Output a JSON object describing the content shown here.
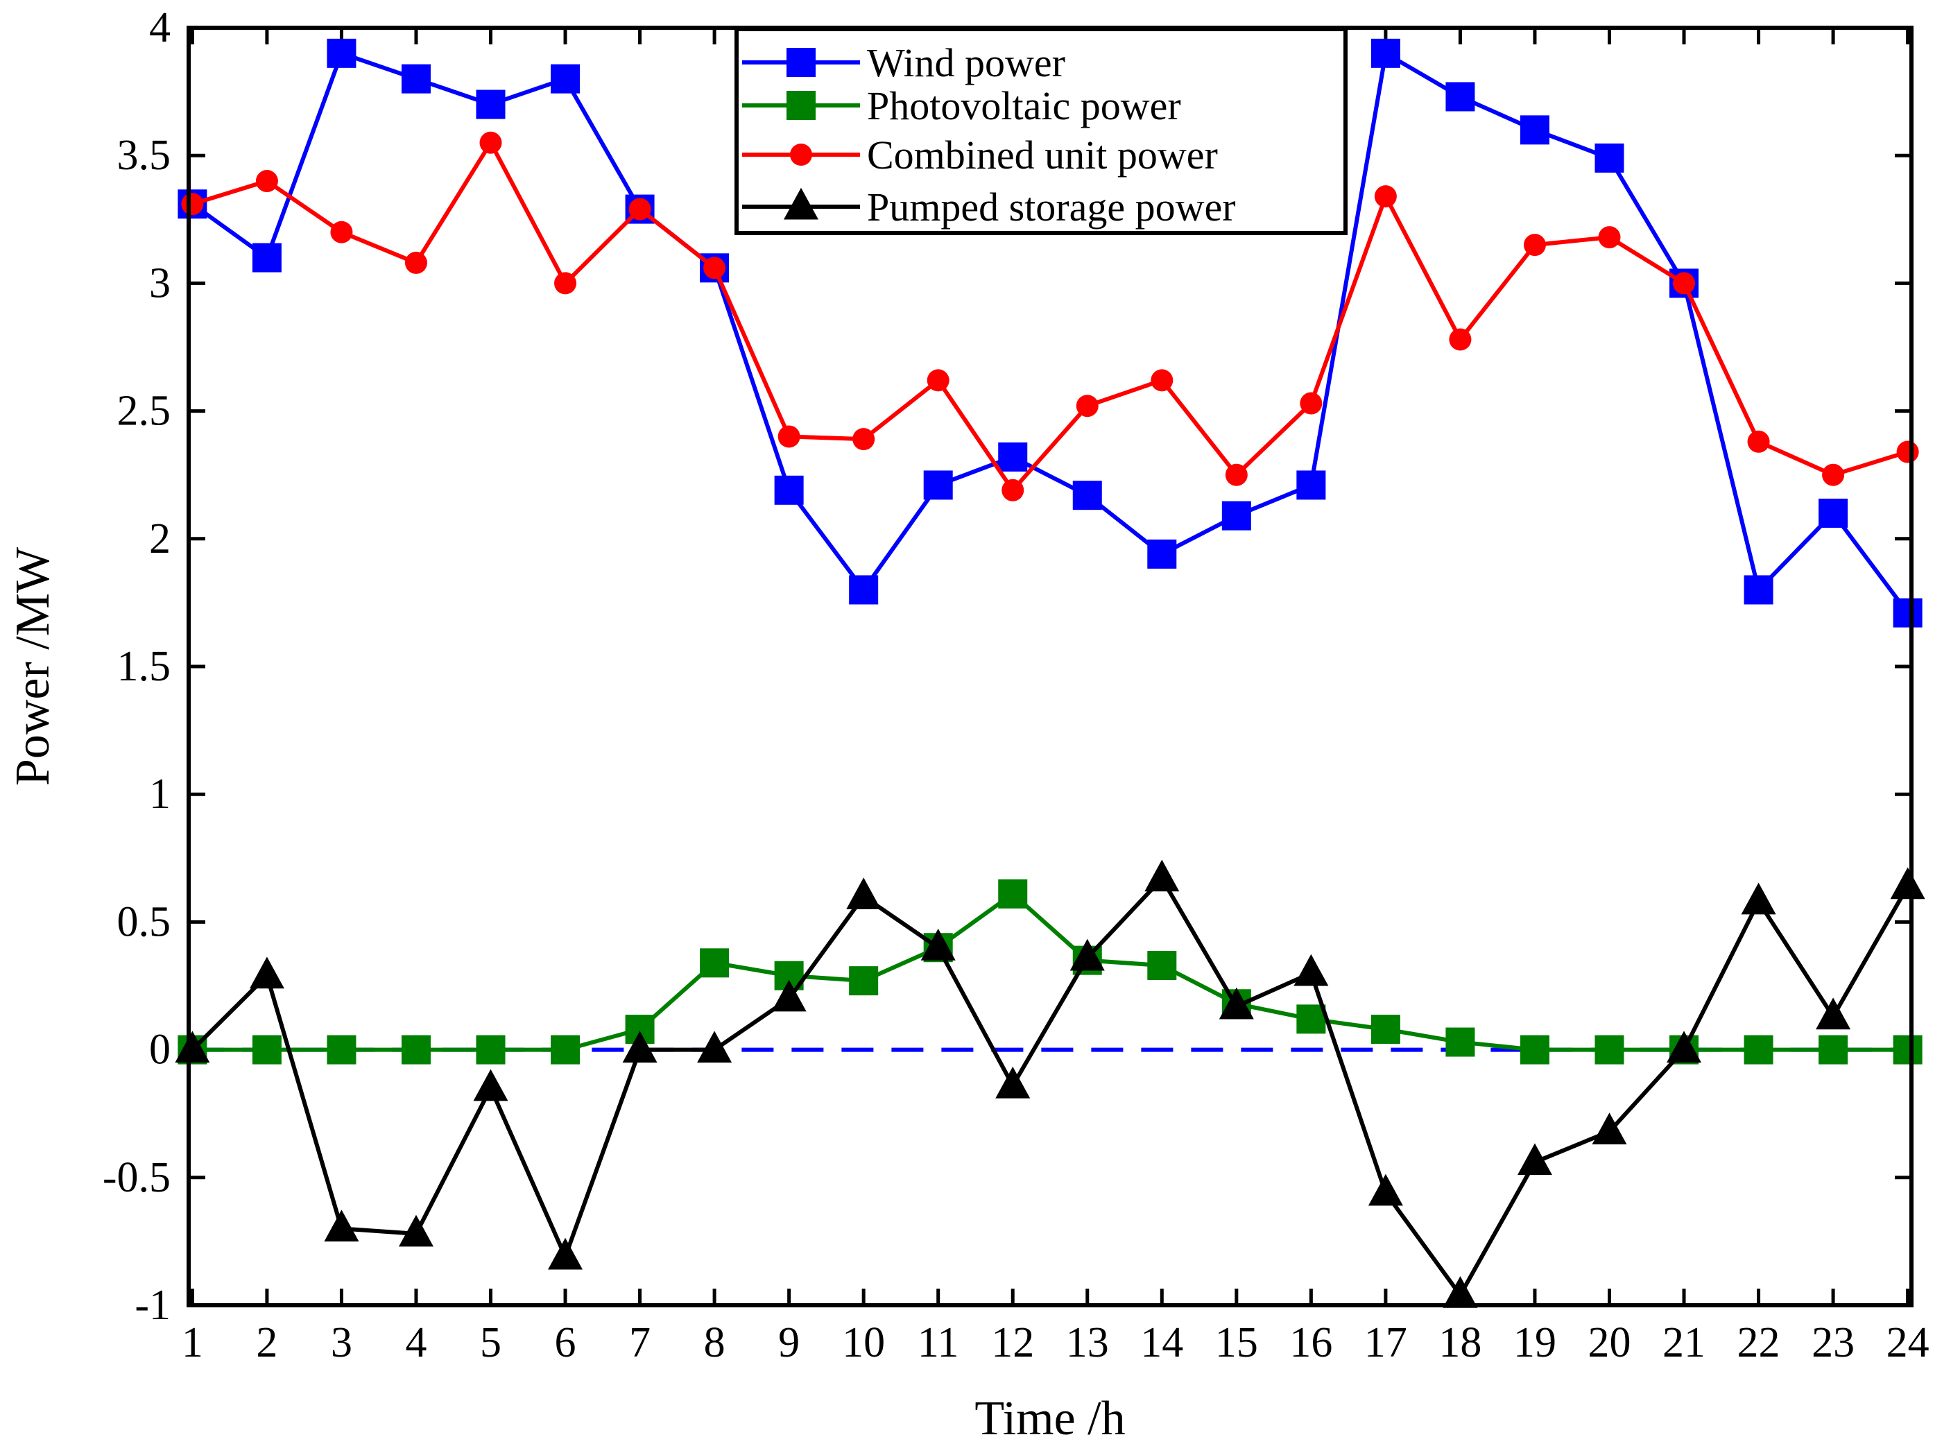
{
  "chart_data": {
    "type": "line",
    "title": "",
    "xlabel": "Time /h",
    "ylabel": "Power /MW",
    "x": [
      1,
      2,
      3,
      4,
      5,
      6,
      7,
      8,
      9,
      10,
      11,
      12,
      13,
      14,
      15,
      16,
      17,
      18,
      19,
      20,
      21,
      22,
      23,
      24
    ],
    "xticks": [
      "1",
      "2",
      "3",
      "4",
      "5",
      "6",
      "7",
      "8",
      "9",
      "10",
      "11",
      "12",
      "13",
      "14",
      "15",
      "16",
      "17",
      "18",
      "19",
      "20",
      "21",
      "22",
      "23",
      "24"
    ],
    "xlim": [
      0.95,
      24.05
    ],
    "ylim": [
      -1,
      4
    ],
    "yticks": [
      "-1",
      "-0.5",
      "0",
      "0.5",
      "1",
      "1.5",
      "2",
      "2.5",
      "3",
      "3.5",
      "4"
    ],
    "legend_position": "top-center",
    "grid": false,
    "series": [
      {
        "name": "Wind power",
        "color": "#0000ff",
        "marker": "square",
        "values": [
          3.31,
          3.1,
          3.9,
          3.8,
          3.7,
          3.8,
          3.29,
          3.06,
          2.19,
          1.8,
          2.21,
          2.32,
          2.17,
          1.94,
          2.09,
          2.21,
          3.9,
          3.73,
          3.6,
          3.49,
          3.0,
          1.8,
          2.1,
          1.71
        ]
      },
      {
        "name": "Photovoltaic power",
        "color": "#008000",
        "marker": "square",
        "values": [
          0,
          0,
          0,
          0,
          0,
          0,
          0.08,
          0.34,
          0.29,
          0.27,
          0.4,
          0.61,
          0.35,
          0.33,
          0.18,
          0.12,
          0.08,
          0.03,
          0,
          0,
          0,
          0,
          0,
          0
        ]
      },
      {
        "name": "Combined unit power",
        "color": "#ff0000",
        "marker": "circle",
        "values": [
          3.31,
          3.4,
          3.2,
          3.08,
          3.55,
          3.0,
          3.29,
          3.06,
          2.4,
          2.39,
          2.62,
          2.19,
          2.52,
          2.62,
          2.25,
          2.53,
          3.34,
          2.78,
          3.15,
          3.18,
          3.0,
          2.38,
          2.25,
          2.34
        ]
      },
      {
        "name": "Pumped storage power",
        "color": "#000000",
        "marker": "triangle",
        "values": [
          0,
          0.29,
          -0.7,
          -0.72,
          -0.15,
          -0.81,
          0,
          0,
          0.2,
          0.6,
          0.4,
          -0.14,
          0.36,
          0.67,
          0.17,
          0.3,
          -0.56,
          -0.96,
          -0.44,
          -0.32,
          0,
          0.58,
          0.13,
          0.64
        ]
      }
    ],
    "reference_line": {
      "y": 0,
      "color": "#0000ff",
      "style": "dashed"
    }
  }
}
